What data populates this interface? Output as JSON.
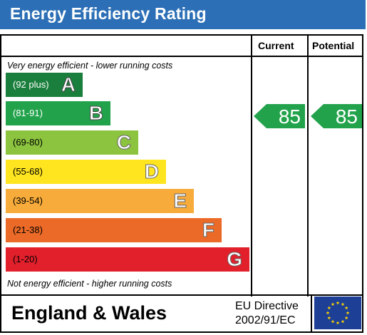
{
  "header": {
    "title": "Energy Efficiency Rating"
  },
  "columns": {
    "current": "Current",
    "potential": "Potential"
  },
  "notes": {
    "top": "Very energy efficient - lower running costs",
    "bottom": "Not energy efficient - higher running costs"
  },
  "bands": [
    {
      "range": "(92 plus)",
      "letter": "A",
      "color": "#1a7f3c"
    },
    {
      "range": "(81-91)",
      "letter": "B",
      "color": "#22a34b"
    },
    {
      "range": "(69-80)",
      "letter": "C",
      "color": "#8cc43f"
    },
    {
      "range": "(55-68)",
      "letter": "D",
      "color": "#ffe51f"
    },
    {
      "range": "(39-54)",
      "letter": "E",
      "color": "#f7ab3a"
    },
    {
      "range": "(21-38)",
      "letter": "F",
      "color": "#ec6a27"
    },
    {
      "range": "(1-20)",
      "letter": "G",
      "color": "#e2202c"
    }
  ],
  "ratings": {
    "current": {
      "value": "85",
      "band": "B",
      "color": "#22a34b"
    },
    "potential": {
      "value": "85",
      "band": "B",
      "color": "#22a34b"
    }
  },
  "footer": {
    "region": "England & Wales",
    "directive_line1": "EU Directive",
    "directive_line2": "2002/91/EC",
    "flag_icon": "eu-flag-icon",
    "flag_color": "#1d3f96",
    "star_color": "#ffd500"
  }
}
